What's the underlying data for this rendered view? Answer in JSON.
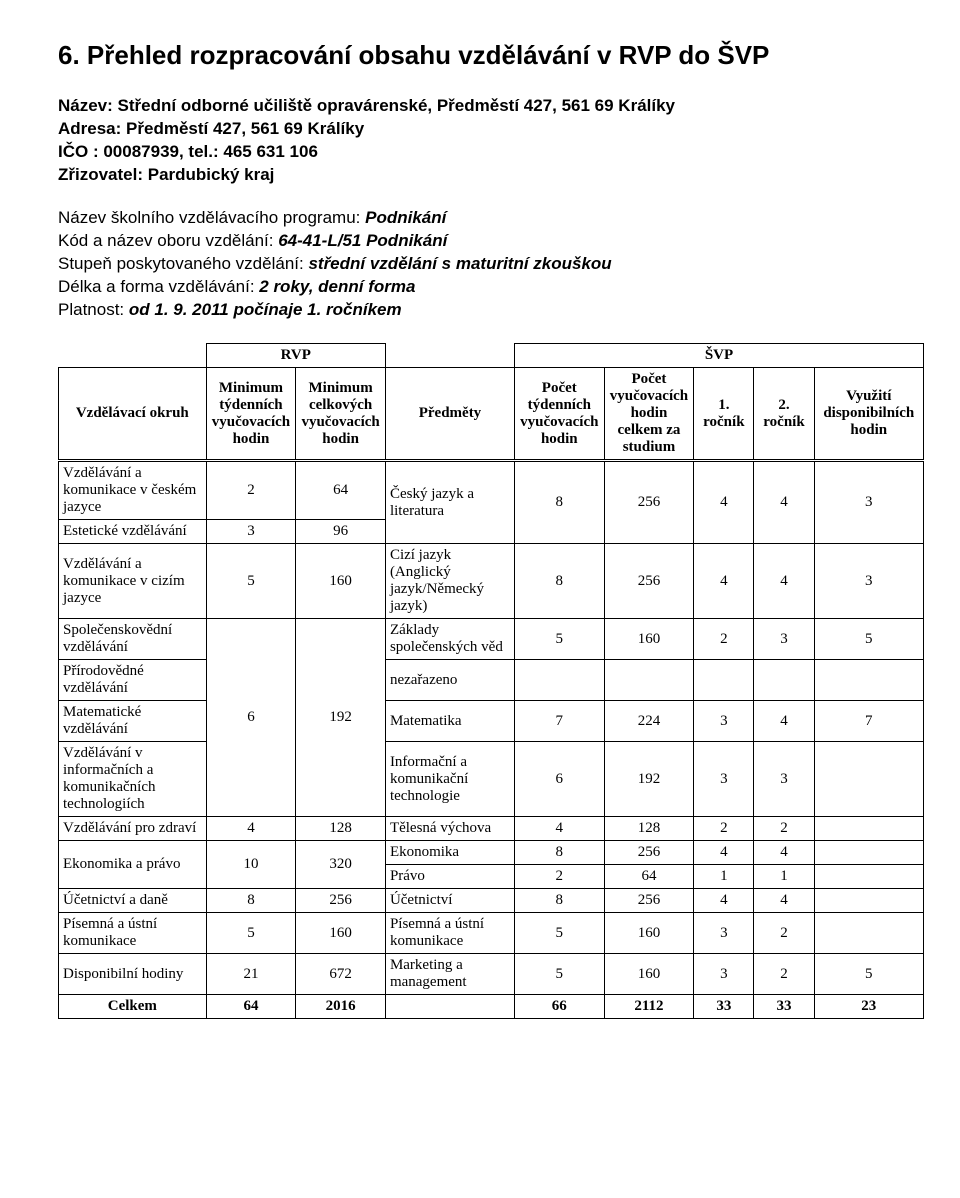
{
  "title": "6. Přehled rozpracování obsahu vzdělávání v RVP do ŠVP",
  "info": {
    "nazev_lbl": "Název: ",
    "nazev_val": "Střední odborné učiliště opravárenské, Předměstí 427, 561 69 Králíky",
    "adresa_lbl": "Adresa: ",
    "adresa_val": "Předměstí 427, 561 69 Králíky",
    "ico_lbl": "IČO : ",
    "ico_val": "00087939, tel.: 465 631 106",
    "zriz_lbl": "Zřizovatel: ",
    "zriz_val": "Pardubický kraj"
  },
  "prog": {
    "nazev_lbl": "Název školního vzdělávacího programu: ",
    "nazev_val": "Podnikání",
    "kod_lbl": "Kód a název oboru vzdělání: ",
    "kod_val": "64-41-L/51 Podnikání",
    "stupen_lbl": "Stupeň poskytovaného vzdělání: ",
    "stupen_val": "střední vzdělání s maturitní zkouškou",
    "delka_lbl": "Délka a forma vzdělávání: ",
    "delka_val": "2 roky, denní forma",
    "platnost_lbl": "Platnost: ",
    "platnost_val": "od 1. 9. 2011 počínaje 1. ročníkem"
  },
  "hdr": {
    "rvp": "RVP",
    "svp": "ŠVP",
    "okruh": "Vzdělávací okruh",
    "rvp_min_tyden": "Minimum týdenních vyučovacích hodin",
    "rvp_min_celk": "Minimum celkových vyučovacích hodin",
    "predmety": "Předměty",
    "sv_tyden": "Počet týdenních vyučovacích hodin",
    "sv_celk": "Počet vyučovacích hodin celkem za studium",
    "roc1": "1. ročník",
    "roc2": "2. ročník",
    "disp": "Využití disponibilních hodin"
  },
  "r": {
    "r1": {
      "okruh": "Vzdělávání a komunikace v českém jazyce",
      "mt": "2",
      "mc": "64"
    },
    "r2": {
      "okruh": "Estetické vzdělávání",
      "mt": "3",
      "mc": "96"
    },
    "subj_cj": {
      "name": "Český jazyk a literatura",
      "t": "8",
      "c": "256",
      "a": "4",
      "b": "4",
      "d": "3"
    },
    "r3": {
      "okruh": "Vzdělávání a komunikace v cizím jazyce",
      "mt": "5",
      "mc": "160"
    },
    "subj_cj2": {
      "name": "Cizí jazyk (Anglický jazyk/Německý jazyk)",
      "t": "8",
      "c": "256",
      "a": "4",
      "b": "4",
      "d": "3"
    },
    "r4": {
      "okruh": "Společenskovědní vzdělávání"
    },
    "subj_zsv": {
      "name": "Základy společenských věd",
      "t": "5",
      "c": "160",
      "a": "2",
      "b": "3",
      "d": "5"
    },
    "r5": {
      "okruh": "Přírodovědné vzdělávání"
    },
    "subj_nez": {
      "name": "nezařazeno"
    },
    "r6": {
      "okruh": "Matematické vzdělávání"
    },
    "subj_mat": {
      "name": "Matematika",
      "t": "7",
      "c": "224",
      "a": "3",
      "b": "4",
      "d": "7"
    },
    "r7": {
      "okruh": "Vzdělávání v informačních a komunikačních technologiích"
    },
    "subj_ikt": {
      "name": "Informační a komunikační technologie",
      "t": "6",
      "c": "192",
      "a": "3",
      "b": "3",
      "d": ""
    },
    "grp_6192": {
      "mt": "6",
      "mc": "192"
    },
    "r8": {
      "okruh": "Vzdělávání pro zdraví",
      "mt": "4",
      "mc": "128"
    },
    "subj_tv": {
      "name": "Tělesná výchova",
      "t": "4",
      "c": "128",
      "a": "2",
      "b": "2",
      "d": ""
    },
    "r9": {
      "okruh": "Ekonomika a právo",
      "mt": "10",
      "mc": "320"
    },
    "subj_eko": {
      "name": "Ekonomika",
      "t": "8",
      "c": "256",
      "a": "4",
      "b": "4",
      "d": ""
    },
    "subj_pra": {
      "name": "Právo",
      "t": "2",
      "c": "64",
      "a": "1",
      "b": "1",
      "d": ""
    },
    "r10": {
      "okruh": "Účetnictví a daně",
      "mt": "8",
      "mc": "256"
    },
    "subj_uce": {
      "name": "Účetnictví",
      "t": "8",
      "c": "256",
      "a": "4",
      "b": "4",
      "d": ""
    },
    "r11": {
      "okruh": "Písemná a ústní komunikace",
      "mt": "5",
      "mc": "160"
    },
    "subj_puk": {
      "name": "Písemná a ústní komunikace",
      "t": "5",
      "c": "160",
      "a": "3",
      "b": "2",
      "d": ""
    },
    "r12": {
      "okruh": "Disponibilní hodiny",
      "mt": "21",
      "mc": "672"
    },
    "subj_mm": {
      "name": "Marketing a management",
      "t": "5",
      "c": "160",
      "a": "3",
      "b": "2",
      "d": "5"
    }
  },
  "sum": {
    "lbl": "Celkem",
    "mt": "64",
    "mc": "2016",
    "t": "66",
    "c": "2112",
    "a": "33",
    "b": "33",
    "d": "23"
  }
}
